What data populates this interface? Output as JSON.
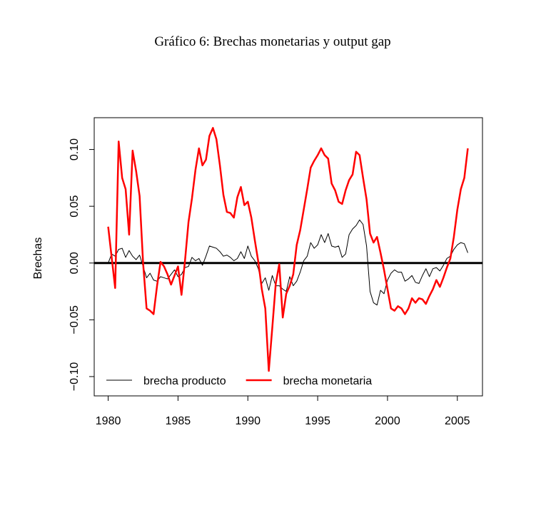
{
  "chart_data": {
    "type": "line",
    "title": "Gráfico 6: Brechas monetarias y output gap",
    "y_label": "Brechas",
    "x": [
      1980,
      1980.25,
      1980.5,
      1980.75,
      1981,
      1981.25,
      1981.5,
      1981.75,
      1982,
      1982.25,
      1982.5,
      1982.75,
      1983,
      1983.25,
      1983.5,
      1983.75,
      1984,
      1984.25,
      1984.5,
      1984.75,
      1985,
      1985.25,
      1985.5,
      1985.75,
      1986,
      1986.25,
      1986.5,
      1986.75,
      1987,
      1987.25,
      1987.5,
      1987.75,
      1988,
      1988.25,
      1988.5,
      1988.75,
      1989,
      1989.25,
      1989.5,
      1989.75,
      1990,
      1990.25,
      1990.5,
      1990.75,
      1991,
      1991.25,
      1991.5,
      1991.75,
      1992,
      1992.25,
      1992.5,
      1992.75,
      1993,
      1993.25,
      1993.5,
      1993.75,
      1994,
      1994.25,
      1994.5,
      1994.75,
      1995,
      1995.25,
      1995.5,
      1995.75,
      1996,
      1996.25,
      1996.5,
      1996.75,
      1997,
      1997.25,
      1997.5,
      1997.75,
      1998,
      1998.25,
      1998.5,
      1998.75,
      1999,
      1999.25,
      1999.5,
      1999.75,
      2000,
      2000.25,
      2000.5,
      2000.75,
      2001,
      2001.25,
      2001.5,
      2001.75,
      2002,
      2002.25,
      2002.5,
      2002.75,
      2003,
      2003.25,
      2003.5,
      2003.75,
      2004,
      2004.25,
      2004.5,
      2004.75,
      2005,
      2005.25,
      2005.5,
      2005.75
    ],
    "series": [
      {
        "name": "brecha producto",
        "color": "#000000",
        "width": 1,
        "values": [
          0,
          0.008,
          0.006,
          0.012,
          0.013,
          0.005,
          0.011,
          0.006,
          0.003,
          0.007,
          -0.003,
          -0.013,
          -0.009,
          -0.015,
          -0.016,
          -0.012,
          -0.013,
          -0.014,
          -0.01,
          -0.006,
          -0.012,
          -0.01,
          -0.004,
          -0.003,
          0.005,
          0.002,
          0.004,
          -0.002,
          0.006,
          0.015,
          0.014,
          0.013,
          0.01,
          0.006,
          0.007,
          0.005,
          0.002,
          0.004,
          0.01,
          0.004,
          0.015,
          0.006,
          0.002,
          -0.005,
          -0.018,
          -0.013,
          -0.024,
          -0.011,
          -0.02,
          -0.02,
          -0.023,
          -0.025,
          -0.012,
          -0.02,
          -0.016,
          -0.008,
          0.002,
          0.006,
          0.018,
          0.013,
          0.016,
          0.025,
          0.018,
          0.026,
          0.015,
          0.014,
          0.015,
          0.005,
          0.008,
          0.025,
          0.03,
          0.033,
          0.038,
          0.034,
          0.015,
          -0.025,
          -0.035,
          -0.037,
          -0.024,
          -0.027,
          -0.015,
          -0.009,
          -0.006,
          -0.008,
          -0.008,
          -0.016,
          -0.014,
          -0.011,
          -0.017,
          -0.018,
          -0.011,
          -0.005,
          -0.012,
          -0.005,
          -0.004,
          -0.007,
          -0.002,
          0.004,
          0.006,
          0.012,
          0.016,
          0.018,
          0.017,
          0.009
        ]
      },
      {
        "name": "brecha monetaria",
        "color": "#ff0000",
        "width": 2.5,
        "values": [
          0.032,
          0.005,
          -0.022,
          0.107,
          0.075,
          0.065,
          0.025,
          0.099,
          0.081,
          0.059,
          0,
          -0.04,
          -0.042,
          -0.045,
          -0.02,
          0.001,
          -0.003,
          -0.01,
          -0.019,
          -0.011,
          -0.003,
          -0.028,
          0.002,
          0.036,
          0.057,
          0.082,
          0.101,
          0.086,
          0.091,
          0.112,
          0.119,
          0.109,
          0.086,
          0.06,
          0.045,
          0.044,
          0.04,
          0.058,
          0.067,
          0.051,
          0.054,
          0.04,
          0.02,
          0.001,
          -0.023,
          -0.04,
          -0.095,
          -0.057,
          -0.018,
          -0.001,
          -0.048,
          -0.027,
          -0.02,
          -0.01,
          0.016,
          0.029,
          0.047,
          0.065,
          0.084,
          0.09,
          0.095,
          0.101,
          0.095,
          0.092,
          0.07,
          0.064,
          0.054,
          0.052,
          0.064,
          0.073,
          0.078,
          0.098,
          0.095,
          0.075,
          0.056,
          0.026,
          0.018,
          0.023,
          0.009,
          -0.006,
          -0.023,
          -0.04,
          -0.042,
          -0.038,
          -0.04,
          -0.045,
          -0.04,
          -0.031,
          -0.035,
          -0.031,
          -0.032,
          -0.036,
          -0.029,
          -0.023,
          -0.015,
          -0.021,
          -0.013,
          -0.004,
          0.004,
          0.023,
          0.047,
          0.065,
          0.075,
          0.101
        ]
      }
    ],
    "hline": 0,
    "xlim": [
      1979,
      2006.8
    ],
    "ylim": [
      -0.117,
      0.128
    ],
    "xticks": [
      1980,
      1985,
      1990,
      1995,
      2000,
      2005
    ],
    "yticks": [
      {
        "value": -0.1,
        "label": "−0.10"
      },
      {
        "value": -0.05,
        "label": "−0.05"
      },
      {
        "value": 0,
        "label": "0.00"
      },
      0.05,
      {
        "value": 0.1,
        "label": "0.10"
      }
    ],
    "legend": "bottom-left"
  }
}
